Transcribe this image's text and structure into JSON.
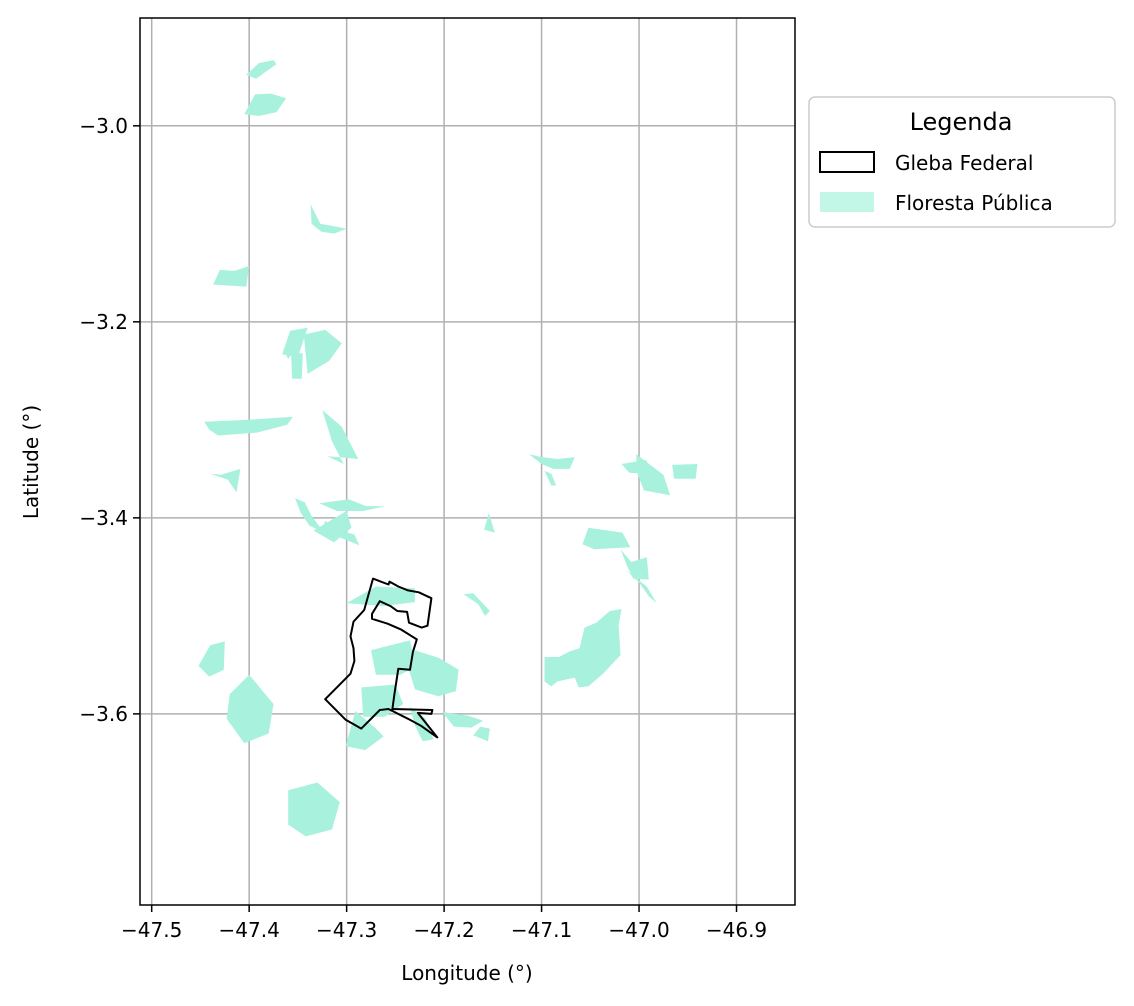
{
  "colors": {
    "forest_fill": "#a8f2dd",
    "gleba_stroke": "#000000",
    "grid": "#b0b0b0",
    "axes": "#000000",
    "background": "#ffffff"
  },
  "axes": {
    "xlabel": "Longitude (°)",
    "ylabel": "Latitude (°)",
    "xlim": [
      -47.512,
      -46.84
    ],
    "ylim": [
      -3.795,
      -2.89
    ],
    "x_ticks": [
      -47.5,
      -47.4,
      -47.3,
      -47.2,
      -47.1,
      -47.0,
      -46.9
    ],
    "x_tick_labels": [
      "−47.5",
      "−47.4",
      "−47.3",
      "−47.2",
      "−47.1",
      "−47.0",
      "−46.9"
    ],
    "y_ticks": [
      -3.0,
      -3.2,
      -3.4,
      -3.6
    ],
    "y_tick_labels": [
      "−3.0",
      "−3.2",
      "−3.4",
      "−3.6"
    ],
    "grid": true
  },
  "legend": {
    "title": "Legenda",
    "placement": "outside-right-top",
    "items": [
      {
        "label": "Gleba Federal",
        "kind": "outline"
      },
      {
        "label": "Floresta Pública",
        "kind": "fill"
      }
    ]
  },
  "map_data": {
    "gleba_federal": [
      [
        -47.273,
        -3.462
      ],
      [
        -47.257,
        -3.468
      ],
      [
        -47.256,
        -3.465
      ],
      [
        -47.247,
        -3.47
      ],
      [
        -47.237,
        -3.474
      ],
      [
        -47.226,
        -3.476
      ],
      [
        -47.213,
        -3.482
      ],
      [
        -47.217,
        -3.51
      ],
      [
        -47.223,
        -3.512
      ],
      [
        -47.236,
        -3.507
      ],
      [
        -47.238,
        -3.496
      ],
      [
        -47.248,
        -3.495
      ],
      [
        -47.255,
        -3.49
      ],
      [
        -47.266,
        -3.485
      ],
      [
        -47.274,
        -3.498
      ],
      [
        -47.274,
        -3.503
      ],
      [
        -47.258,
        -3.508
      ],
      [
        -47.244,
        -3.514
      ],
      [
        -47.228,
        -3.524
      ],
      [
        -47.232,
        -3.537
      ],
      [
        -47.235,
        -3.555
      ],
      [
        -47.247,
        -3.554
      ],
      [
        -47.251,
        -3.58
      ],
      [
        -47.253,
        -3.595
      ],
      [
        -47.212,
        -3.596
      ],
      [
        -47.213,
        -3.6
      ],
      [
        -47.227,
        -3.599
      ],
      [
        -47.207,
        -3.624
      ],
      [
        -47.224,
        -3.612
      ],
      [
        -47.237,
        -3.605
      ],
      [
        -47.257,
        -3.595
      ],
      [
        -47.266,
        -3.596
      ],
      [
        -47.285,
        -3.615
      ],
      [
        -47.301,
        -3.606
      ],
      [
        -47.322,
        -3.585
      ],
      [
        -47.296,
        -3.559
      ],
      [
        -47.292,
        -3.546
      ],
      [
        -47.293,
        -3.533
      ],
      [
        -47.296,
        -3.521
      ],
      [
        -47.293,
        -3.506
      ],
      [
        -47.282,
        -3.494
      ],
      [
        -47.273,
        -3.462
      ]
    ],
    "forest_patches": [
      [
        [
          -47.403,
          -2.948
        ],
        [
          -47.39,
          -2.936
        ],
        [
          -47.375,
          -2.933
        ],
        [
          -47.372,
          -2.937
        ],
        [
          -47.393,
          -2.952
        ]
      ],
      [
        [
          -47.405,
          -2.988
        ],
        [
          -47.394,
          -2.968
        ],
        [
          -47.378,
          -2.967
        ],
        [
          -47.362,
          -2.972
        ],
        [
          -47.372,
          -2.986
        ],
        [
          -47.39,
          -2.99
        ]
      ],
      [
        [
          -47.337,
          -3.08
        ],
        [
          -47.327,
          -3.1
        ],
        [
          -47.31,
          -3.103
        ],
        [
          -47.3,
          -3.105
        ],
        [
          -47.313,
          -3.11
        ],
        [
          -47.326,
          -3.108
        ],
        [
          -47.336,
          -3.1
        ]
      ],
      [
        [
          -47.43,
          -3.147
        ],
        [
          -47.437,
          -3.162
        ],
        [
          -47.403,
          -3.164
        ],
        [
          -47.4,
          -3.143
        ],
        [
          -47.415,
          -3.148
        ]
      ],
      [
        [
          -47.322,
          -3.208
        ],
        [
          -47.344,
          -3.213
        ],
        [
          -47.34,
          -3.253
        ],
        [
          -47.318,
          -3.24
        ],
        [
          -47.305,
          -3.222
        ]
      ],
      [
        [
          -47.358,
          -3.209
        ],
        [
          -47.34,
          -3.206
        ],
        [
          -47.35,
          -3.236
        ],
        [
          -47.366,
          -3.233
        ]
      ],
      [
        [
          -47.352,
          -3.225
        ],
        [
          -47.365,
          -3.228
        ],
        [
          -47.36,
          -3.238
        ]
      ],
      [
        [
          -47.357,
          -3.232
        ],
        [
          -47.345,
          -3.232
        ],
        [
          -47.346,
          -3.258
        ],
        [
          -47.356,
          -3.258
        ]
      ],
      [
        [
          -47.446,
          -3.302
        ],
        [
          -47.4,
          -3.3
        ],
        [
          -47.373,
          -3.298
        ],
        [
          -47.355,
          -3.297
        ],
        [
          -47.361,
          -3.305
        ],
        [
          -47.392,
          -3.313
        ],
        [
          -47.432,
          -3.316
        ],
        [
          -47.441,
          -3.31
        ]
      ],
      [
        [
          -47.325,
          -3.29
        ],
        [
          -47.305,
          -3.307
        ],
        [
          -47.288,
          -3.34
        ],
        [
          -47.32,
          -3.337
        ],
        [
          -47.303,
          -3.345
        ],
        [
          -47.315,
          -3.322
        ]
      ],
      [
        [
          -47.44,
          -3.355
        ],
        [
          -47.422,
          -3.361
        ],
        [
          -47.413,
          -3.374
        ],
        [
          -47.409,
          -3.35
        ],
        [
          -47.429,
          -3.356
        ]
      ],
      [
        [
          -47.353,
          -3.38
        ],
        [
          -47.347,
          -3.395
        ],
        [
          -47.338,
          -3.408
        ],
        [
          -47.323,
          -3.415
        ],
        [
          -47.336,
          -3.398
        ],
        [
          -47.343,
          -3.384
        ]
      ],
      [
        [
          -47.328,
          -3.385
        ],
        [
          -47.298,
          -3.381
        ],
        [
          -47.28,
          -3.388
        ],
        [
          -47.26,
          -3.388
        ],
        [
          -47.283,
          -3.393
        ],
        [
          -47.31,
          -3.393
        ]
      ],
      [
        [
          -47.322,
          -3.403
        ],
        [
          -47.31,
          -3.412
        ],
        [
          -47.292,
          -3.417
        ],
        [
          -47.287,
          -3.428
        ],
        [
          -47.307,
          -3.42
        ],
        [
          -47.325,
          -3.412
        ]
      ],
      [
        [
          -47.052,
          -3.41
        ],
        [
          -47.017,
          -3.415
        ],
        [
          -47.009,
          -3.43
        ],
        [
          -47.046,
          -3.432
        ],
        [
          -47.058,
          -3.427
        ]
      ],
      [
        [
          -47.019,
          -3.432
        ],
        [
          -47.012,
          -3.45
        ],
        [
          -47.006,
          -3.462
        ],
        [
          -46.99,
          -3.463
        ],
        [
          -46.992,
          -3.44
        ],
        [
          -47.008,
          -3.445
        ]
      ],
      [
        [
          -47.015,
          -3.452
        ],
        [
          -47.0,
          -3.466
        ],
        [
          -46.99,
          -3.48
        ],
        [
          -46.982,
          -3.487
        ],
        [
          -46.992,
          -3.47
        ]
      ],
      [
        [
          -47.003,
          -3.335
        ],
        [
          -46.975,
          -3.356
        ],
        [
          -46.968,
          -3.377
        ],
        [
          -46.995,
          -3.372
        ],
        [
          -47.002,
          -3.354
        ]
      ],
      [
        [
          -47.018,
          -3.345
        ],
        [
          -46.993,
          -3.341
        ],
        [
          -46.985,
          -3.355
        ],
        [
          -47.01,
          -3.354
        ]
      ],
      [
        [
          -46.966,
          -3.346
        ],
        [
          -46.94,
          -3.345
        ],
        [
          -46.942,
          -3.36
        ],
        [
          -46.964,
          -3.36
        ]
      ],
      [
        [
          -47.113,
          -3.335
        ],
        [
          -47.1,
          -3.338
        ],
        [
          -47.083,
          -3.34
        ],
        [
          -47.066,
          -3.338
        ],
        [
          -47.071,
          -3.35
        ],
        [
          -47.088,
          -3.35
        ],
        [
          -47.1,
          -3.345
        ]
      ],
      [
        [
          -47.097,
          -3.352
        ],
        [
          -47.09,
          -3.367
        ],
        [
          -47.085,
          -3.367
        ],
        [
          -47.09,
          -3.355
        ]
      ],
      [
        [
          -47.18,
          -3.478
        ],
        [
          -47.17,
          -3.477
        ],
        [
          -47.153,
          -3.495
        ],
        [
          -47.158,
          -3.5
        ],
        [
          -47.165,
          -3.488
        ]
      ],
      [
        [
          -47.154,
          -3.395
        ],
        [
          -47.148,
          -3.415
        ],
        [
          -47.159,
          -3.412
        ]
      ],
      [
        [
          -47.097,
          -3.542
        ],
        [
          -47.082,
          -3.542
        ],
        [
          -47.071,
          -3.536
        ],
        [
          -47.061,
          -3.533
        ],
        [
          -47.056,
          -3.512
        ],
        [
          -47.044,
          -3.507
        ],
        [
          -47.03,
          -3.495
        ],
        [
          -47.018,
          -3.493
        ],
        [
          -47.021,
          -3.51
        ],
        [
          -47.02,
          -3.525
        ],
        [
          -47.019,
          -3.54
        ],
        [
          -47.037,
          -3.559
        ],
        [
          -47.052,
          -3.572
        ],
        [
          -47.062,
          -3.573
        ],
        [
          -47.066,
          -3.563
        ],
        [
          -47.084,
          -3.567
        ],
        [
          -47.09,
          -3.572
        ],
        [
          -47.097,
          -3.567
        ]
      ],
      [
        [
          -47.185,
          -3.555
        ],
        [
          -47.205,
          -3.543
        ],
        [
          -47.23,
          -3.535
        ],
        [
          -47.237,
          -3.552
        ],
        [
          -47.23,
          -3.575
        ],
        [
          -47.206,
          -3.582
        ],
        [
          -47.188,
          -3.577
        ]
      ],
      [
        [
          -47.275,
          -3.535
        ],
        [
          -47.235,
          -3.525
        ],
        [
          -47.229,
          -3.552
        ],
        [
          -47.245,
          -3.56
        ],
        [
          -47.27,
          -3.56
        ]
      ],
      [
        [
          -47.285,
          -3.573
        ],
        [
          -47.25,
          -3.57
        ],
        [
          -47.242,
          -3.59
        ],
        [
          -47.261,
          -3.603
        ],
        [
          -47.283,
          -3.603
        ]
      ],
      [
        [
          -47.291,
          -3.597
        ],
        [
          -47.272,
          -3.613
        ],
        [
          -47.262,
          -3.623
        ],
        [
          -47.281,
          -3.637
        ],
        [
          -47.301,
          -3.633
        ]
      ],
      [
        [
          -47.235,
          -3.593
        ],
        [
          -47.23,
          -3.612
        ],
        [
          -47.222,
          -3.628
        ],
        [
          -47.211,
          -3.626
        ],
        [
          -47.219,
          -3.605
        ]
      ],
      [
        [
          -47.202,
          -3.598
        ],
        [
          -47.175,
          -3.602
        ],
        [
          -47.16,
          -3.607
        ],
        [
          -47.172,
          -3.614
        ],
        [
          -47.19,
          -3.613
        ]
      ],
      [
        [
          -47.17,
          -3.622
        ],
        [
          -47.155,
          -3.628
        ],
        [
          -47.153,
          -3.615
        ],
        [
          -47.163,
          -3.613
        ]
      ],
      [
        [
          -47.452,
          -3.551
        ],
        [
          -47.44,
          -3.53
        ],
        [
          -47.425,
          -3.526
        ],
        [
          -47.426,
          -3.555
        ],
        [
          -47.441,
          -3.562
        ]
      ],
      [
        [
          -47.4,
          -3.56
        ],
        [
          -47.375,
          -3.59
        ],
        [
          -47.38,
          -3.62
        ],
        [
          -47.405,
          -3.63
        ],
        [
          -47.423,
          -3.605
        ],
        [
          -47.42,
          -3.58
        ]
      ],
      [
        [
          -47.36,
          -3.678
        ],
        [
          -47.33,
          -3.67
        ],
        [
          -47.307,
          -3.69
        ],
        [
          -47.315,
          -3.718
        ],
        [
          -47.342,
          -3.725
        ],
        [
          -47.36,
          -3.713
        ]
      ],
      [
        [
          -47.3,
          -3.487
        ],
        [
          -47.27,
          -3.47
        ],
        [
          -47.23,
          -3.472
        ],
        [
          -47.23,
          -3.486
        ],
        [
          -47.263,
          -3.49
        ]
      ],
      [
        [
          -47.3,
          -3.393
        ],
        [
          -47.295,
          -3.41
        ],
        [
          -47.313,
          -3.425
        ],
        [
          -47.334,
          -3.413
        ]
      ]
    ]
  }
}
